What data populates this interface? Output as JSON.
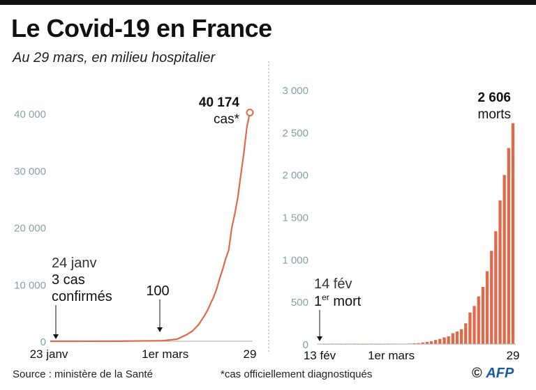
{
  "header": {
    "title": "Le Covid-19 en France",
    "subtitle": "Au 29 mars, en milieu hospitalier"
  },
  "footer": {
    "source": "Source : ministère de la Santé",
    "note": "*cas officiellement diagnostiqués",
    "copyright": "©",
    "logo": "AFP"
  },
  "colors": {
    "series": "#e0694a",
    "axis_ticks": "#8aa0a6",
    "text": "#111111"
  },
  "chart_data": [
    {
      "type": "line",
      "ylabel": "",
      "xlabel": "",
      "ylim": [
        0,
        40000
      ],
      "yticks": [
        "0",
        "10 000",
        "20 000",
        "30 000",
        "40 000"
      ],
      "ytick_values": [
        0,
        10000,
        20000,
        30000,
        40000
      ],
      "xtick_labels": [
        "23 janv",
        "1er mars",
        "29"
      ],
      "xtick_dates": [
        "2020-01-23",
        "2020-03-01",
        "2020-03-29"
      ],
      "annotations": {
        "end_value": "40 174",
        "end_unit": "cas*",
        "first_date": "24 janv",
        "first_line1": "3 cas",
        "first_line2": "confirmés",
        "hundred": "100"
      },
      "x": [
        "2020-01-23",
        "2020-01-24",
        "2020-02-15",
        "2020-02-29",
        "2020-03-01",
        "2020-03-05",
        "2020-03-08",
        "2020-03-10",
        "2020-03-12",
        "2020-03-14",
        "2020-03-15",
        "2020-03-16",
        "2020-03-17",
        "2020-03-18",
        "2020-03-19",
        "2020-03-20",
        "2020-03-21",
        "2020-03-22",
        "2020-03-23",
        "2020-03-24",
        "2020-03-25",
        "2020-03-26",
        "2020-03-27",
        "2020-03-28",
        "2020-03-29"
      ],
      "values": [
        0,
        3,
        12,
        100,
        130,
        377,
        1126,
        1784,
        2876,
        4499,
        5423,
        6633,
        7730,
        9134,
        10995,
        12612,
        14459,
        16018,
        19856,
        22302,
        25233,
        29155,
        32964,
        37575,
        40174
      ]
    },
    {
      "type": "bar",
      "ylabel": "",
      "xlabel": "",
      "ylim": [
        0,
        3000
      ],
      "yticks": [
        "0",
        "500",
        "1 000",
        "1 500",
        "2 000",
        "2 500",
        "3 000"
      ],
      "ytick_values": [
        0,
        500,
        1000,
        1500,
        2000,
        2500,
        3000
      ],
      "xtick_labels": [
        "13 fév",
        "1er mars",
        "29"
      ],
      "xtick_dates": [
        "2020-02-13",
        "2020-03-01",
        "2020-03-29"
      ],
      "annotations": {
        "end_value": "2 606",
        "end_unit": "morts",
        "first_date": "14 fév",
        "first_prefix": "1",
        "first_sup": "er",
        "first_suffix": " mort"
      },
      "start_date": "2020-02-14",
      "values": [
        1,
        1,
        1,
        1,
        1,
        1,
        1,
        1,
        1,
        1,
        1,
        1,
        1,
        1,
        1,
        1,
        2,
        3,
        4,
        4,
        6,
        9,
        11,
        19,
        25,
        33,
        48,
        61,
        79,
        91,
        127,
        148,
        175,
        244,
        372,
        450,
        562,
        674,
        860,
        1100,
        1331,
        1696,
        1995,
        2314,
        2606
      ]
    }
  ]
}
